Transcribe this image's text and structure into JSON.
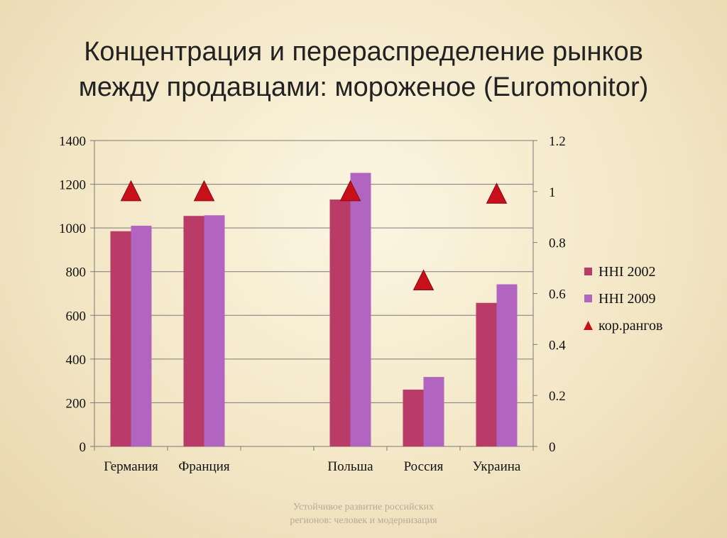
{
  "slide": {
    "title_line1": "Концентрация и перераспределение рынков",
    "title_line2": "между продавцами: мороженое (Euromonitor)",
    "footer_line1": "Устойчивое развитие российских",
    "footer_line2": "регионов: человек и модернизация"
  },
  "chart_data": {
    "type": "bar",
    "categories": [
      "Германия",
      "Франция",
      "",
      "Польша",
      "Россия",
      "Украина"
    ],
    "series": [
      {
        "name": "HHI 2002",
        "axis": "left",
        "kind": "bar",
        "color": "#b83c67",
        "values": [
          985,
          1055,
          null,
          1130,
          260,
          657
        ]
      },
      {
        "name": "HHI 2009",
        "axis": "left",
        "kind": "bar",
        "color": "#b165c0",
        "values": [
          1010,
          1058,
          null,
          1252,
          318,
          742
        ]
      },
      {
        "name": "кор.рангов",
        "axis": "right",
        "kind": "triangle-marker",
        "color": "#c8101b",
        "values": [
          1.0,
          1.0,
          null,
          1.0,
          0.65,
          0.99
        ]
      }
    ],
    "y_left": {
      "min": 0,
      "max": 1400,
      "ticks": [
        "0",
        "200",
        "400",
        "600",
        "800",
        "1000",
        "1200",
        "1400"
      ]
    },
    "y_right": {
      "min": 0,
      "max": 1.2,
      "ticks": [
        "0",
        "0.2",
        "0.4",
        "0.6",
        "0.8",
        "1",
        "1.2"
      ]
    },
    "grid": "horizontal",
    "legend_position": "right"
  }
}
